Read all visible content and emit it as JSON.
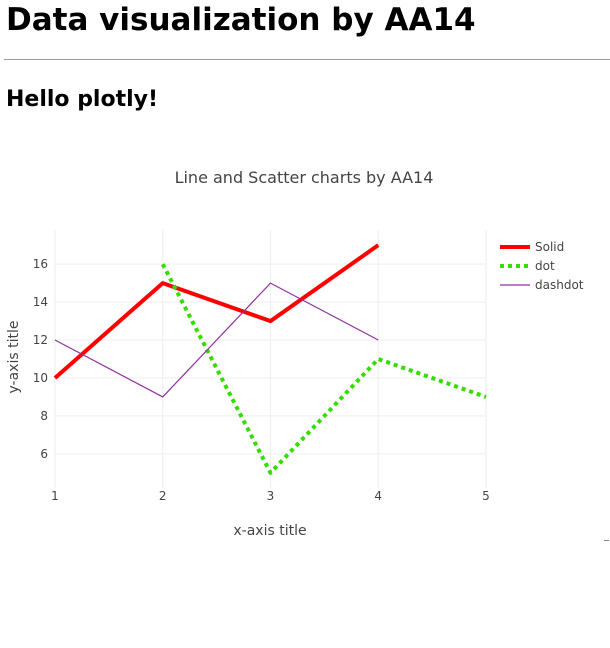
{
  "page": {
    "title": "Data visualization by AA14",
    "subtitle": "Hello plotly!"
  },
  "chart_data": {
    "type": "line",
    "title": "Line and Scatter charts by AA14",
    "xlabel": "x-axis title",
    "ylabel": "y-axis title",
    "xlim": [
      1,
      5
    ],
    "ylim": [
      4.2,
      17.8
    ],
    "xticks": [
      1,
      2,
      3,
      4,
      5
    ],
    "yticks": [
      6,
      8,
      10,
      12,
      14,
      16
    ],
    "grid": true,
    "legend_position": "top-right",
    "series": [
      {
        "name": "Solid",
        "x": [
          1,
          2,
          3,
          4
        ],
        "y": [
          10,
          15,
          13,
          17
        ],
        "color": "#ff0000",
        "dash": "solid"
      },
      {
        "name": "dot",
        "x": [
          2,
          3,
          4,
          5
        ],
        "y": [
          16,
          5,
          11,
          9
        ],
        "color": "#33dd00",
        "dash": "dot"
      },
      {
        "name": "dashdot",
        "x": [
          1,
          2,
          3,
          4
        ],
        "y": [
          12,
          9,
          15,
          12
        ],
        "color": "#9030a0",
        "dash": "solid"
      }
    ]
  }
}
